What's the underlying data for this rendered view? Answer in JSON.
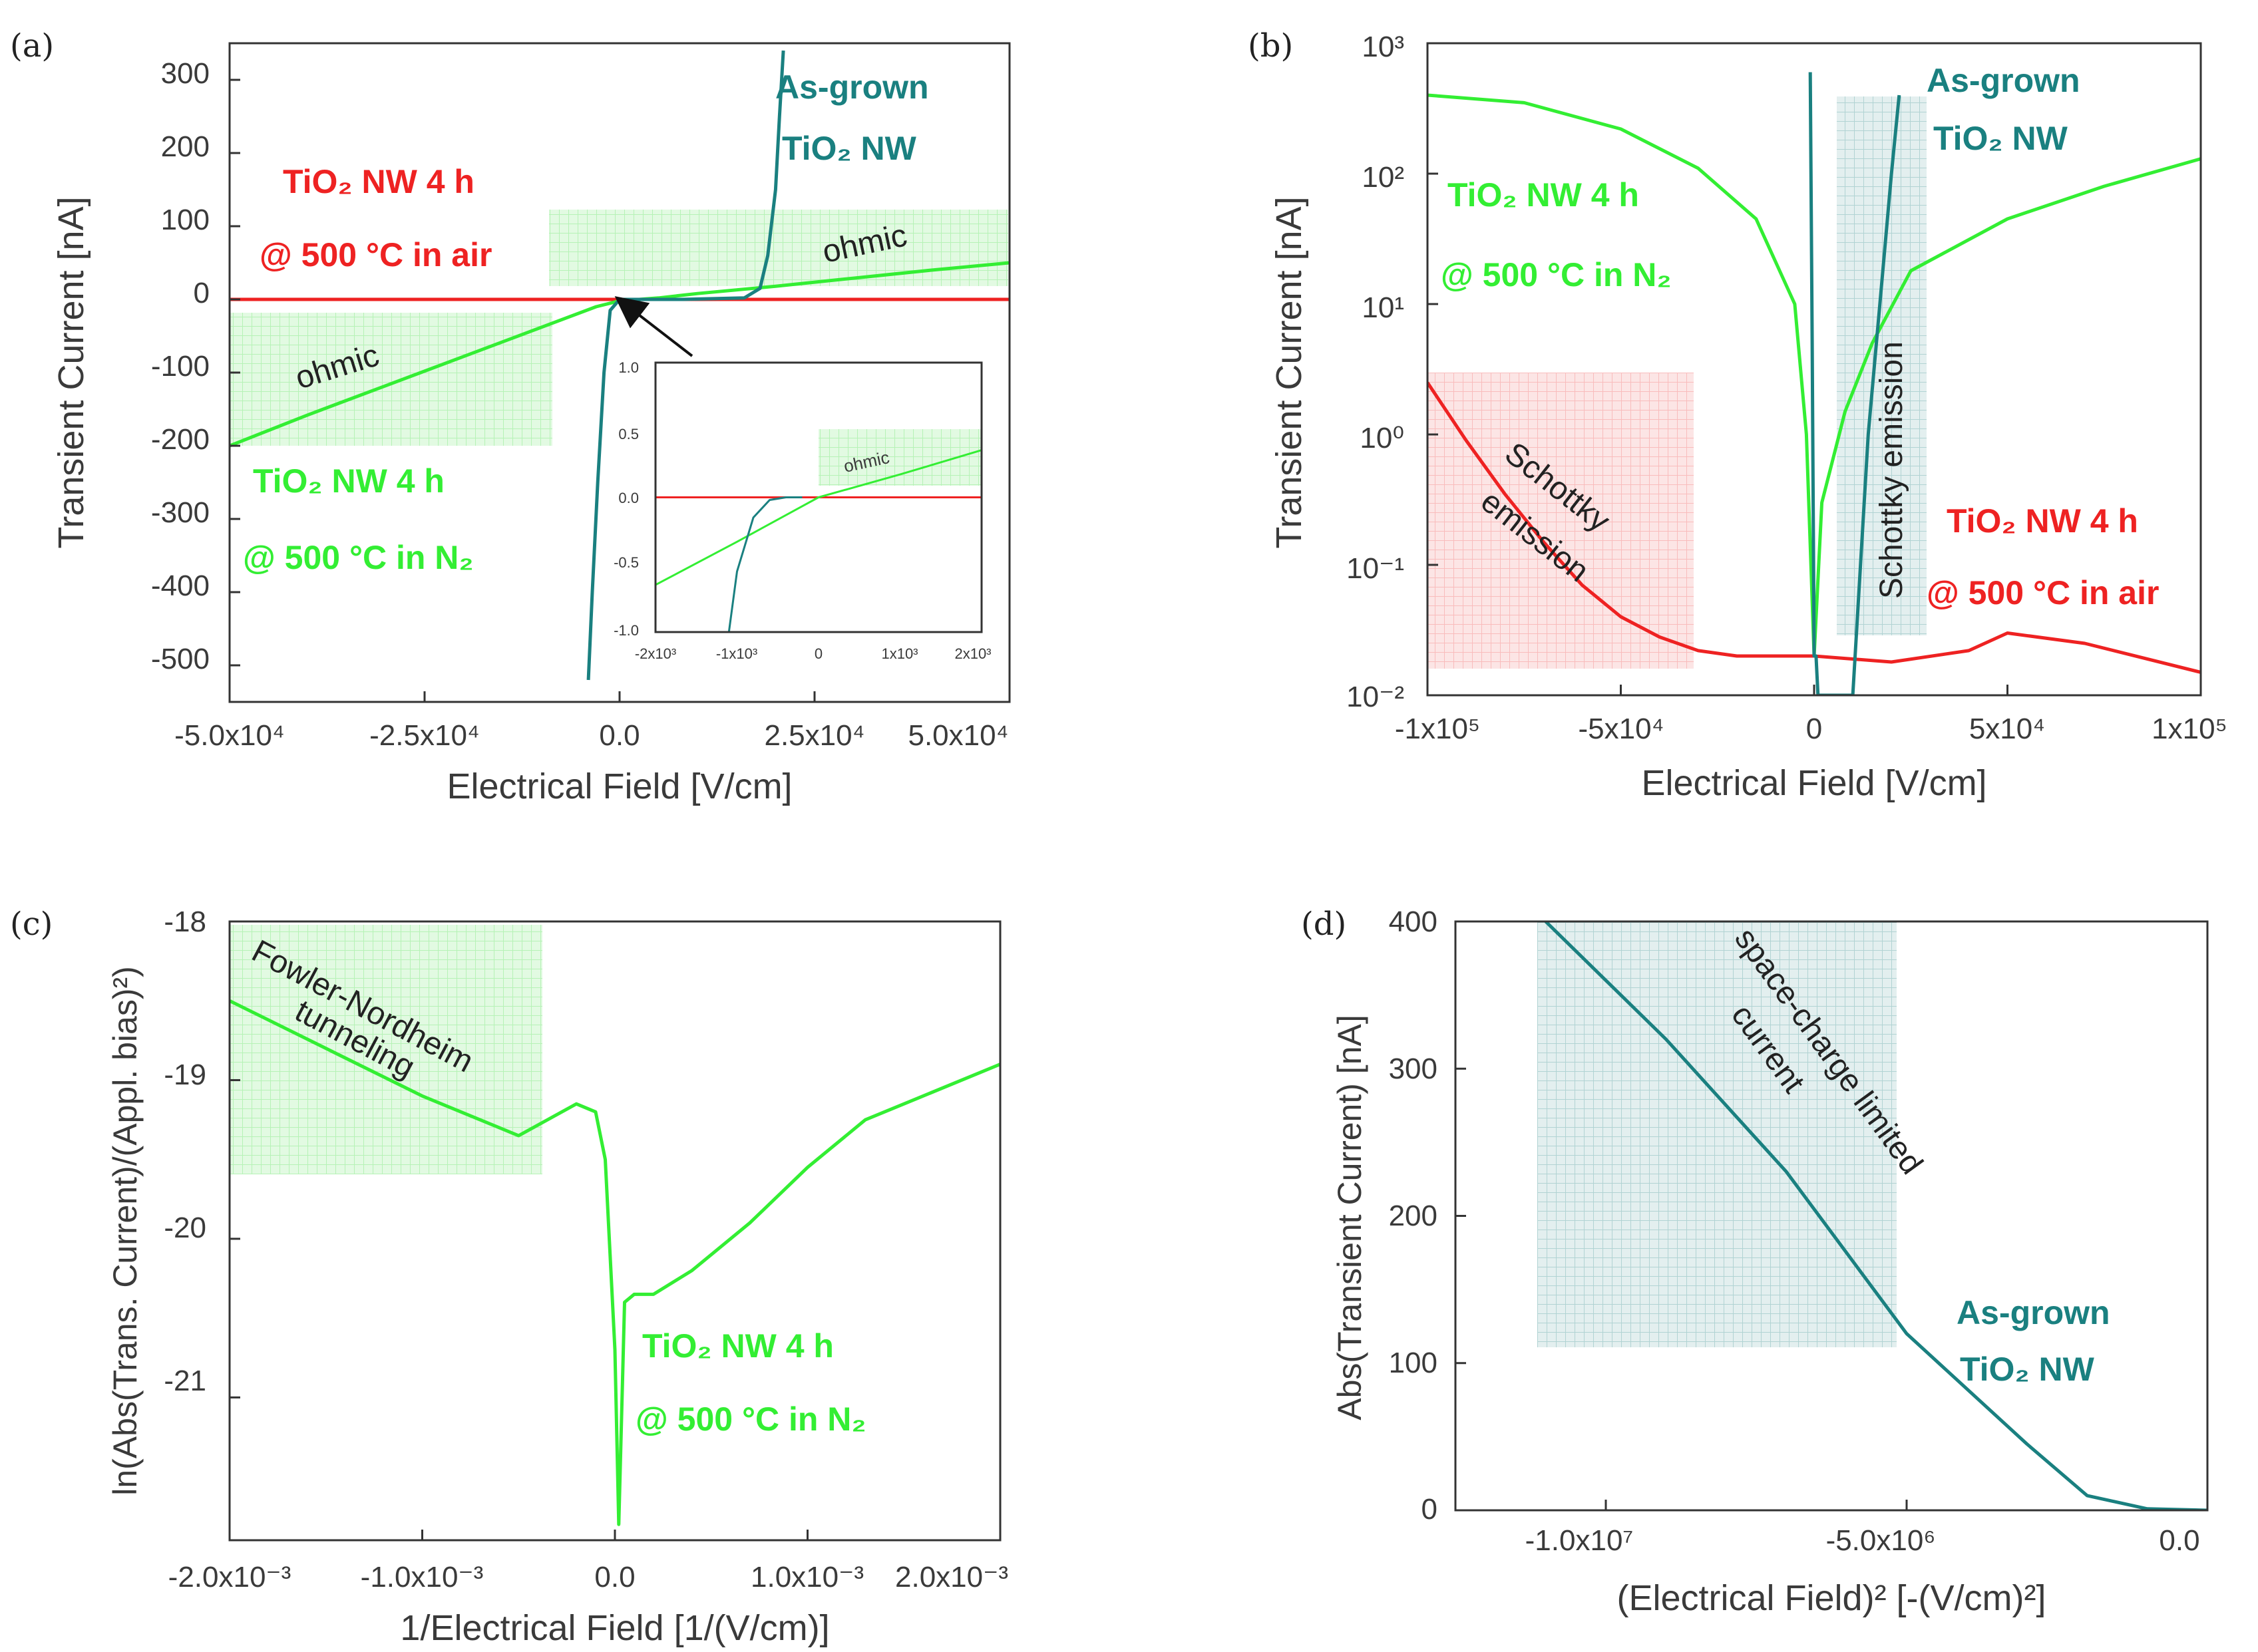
{
  "colors": {
    "green": "#33ee33",
    "teal": "#1a8080",
    "red": "#ee2222",
    "axis": "#333333",
    "green_shade": "#33dd33",
    "red_shade": "#ee4444"
  },
  "panels": {
    "a": {
      "label": "(a)",
      "xlabel": "Electrical Field [V/cm]",
      "ylabel": "Transient Current [nA]",
      "xticks": [
        "-5.0x10⁴",
        "-2.5x10⁴",
        "0.0",
        "2.5x10⁴",
        "5.0x10⁴"
      ],
      "yticks": [
        "300",
        "200",
        "100",
        "0",
        "-100",
        "-200",
        "-300",
        "-400",
        "-500"
      ],
      "ann_asgrown_1": "As-grown",
      "ann_asgrown_2": "TiO₂ NW",
      "ann_air_1": "TiO₂ NW 4 h",
      "ann_air_2": "@ 500 °C in air",
      "ann_n2_1": "TiO₂ NW 4 h",
      "ann_n2_2": "@ 500 °C in N₂",
      "ohmic_1": "ohmic",
      "ohmic_2": "ohmic",
      "inset": {
        "xticks": [
          "-2x10³",
          "-1x10³",
          "0",
          "1x10³",
          "2x10³"
        ],
        "yticks": [
          "1.0",
          "0.5",
          "0.0",
          "-0.5",
          "-1.0"
        ],
        "ohmic": "ohmic"
      }
    },
    "b": {
      "label": "(b)",
      "xlabel": "Electrical Field [V/cm]",
      "ylabel": "Transient Current [nA]",
      "xticks": [
        "-1x10⁵",
        "-5x10⁴",
        "0",
        "5x10⁴",
        "1x10⁵"
      ],
      "yticks": [
        "10³",
        "10²",
        "10¹",
        "10⁰",
        "10⁻¹",
        "10⁻²"
      ],
      "ann_asgrown_1": "As-grown",
      "ann_asgrown_2": "TiO₂ NW",
      "ann_n2_1": "TiO₂ NW 4 h",
      "ann_n2_2": "@ 500 °C in N₂",
      "ann_air_1": "TiO₂ NW 4 h",
      "ann_air_2": "@ 500 °C in air",
      "schottky_1": "Schottky",
      "schottky_2": "emission",
      "schottky_v": "Schottky emission"
    },
    "c": {
      "label": "(c)",
      "xlabel": "1/Electrical Field [1/(V/cm)]",
      "ylabel": "ln(Abs(Trans. Current)/(Appl. bias)²)",
      "xticks": [
        "-2.0x10⁻³",
        "-1.0x10⁻³",
        "0.0",
        "1.0x10⁻³",
        "2.0x10⁻³"
      ],
      "yticks": [
        "-18",
        "-19",
        "-20",
        "-21"
      ],
      "fn_1": "Fowler-Nordheim",
      "fn_2": "tunneling",
      "ann_n2_1": "TiO₂ NW 4 h",
      "ann_n2_2": "@ 500 °C in N₂"
    },
    "d": {
      "label": "(d)",
      "xlabel": "(Electrical Field)² [-(V/cm)²]",
      "ylabel": "Abs(Transient Current) [nA]",
      "xticks": [
        "-1.0x10⁷",
        "-5.0x10⁶",
        "0.0"
      ],
      "yticks": [
        "400",
        "300",
        "200",
        "100",
        "0"
      ],
      "sclc_1": "space-charge limited",
      "sclc_2": "current",
      "ann_asgrown_1": "As-grown",
      "ann_asgrown_2": "TiO₂ NW"
    }
  },
  "chart_data": [
    {
      "panel": "a",
      "type": "line",
      "title": "",
      "xlabel": "Electrical Field [V/cm]",
      "ylabel": "Transient Current [nA]",
      "xlim": [
        -50000,
        50000
      ],
      "ylim": [
        -550,
        350
      ],
      "series": [
        {
          "name": "TiO2 NW 4 h @ 500 °C in air",
          "color": "red",
          "x": [
            -50000,
            50000
          ],
          "y": [
            0,
            0
          ]
        },
        {
          "name": "TiO2 NW 4 h @ 500 °C in N2",
          "color": "green",
          "x": [
            -50000,
            -40000,
            -30000,
            -20000,
            -10000,
            -3000,
            0,
            5000,
            10000,
            20000,
            30000,
            40000,
            50000
          ],
          "y": [
            -200,
            -158,
            -118,
            -78,
            -38,
            -10,
            -2,
            2,
            8,
            18,
            29,
            40,
            50
          ]
        },
        {
          "name": "As-grown TiO2 NW",
          "color": "teal",
          "x": [
            -4000,
            -3500,
            -2800,
            -2000,
            -1200,
            0,
            8000,
            16000,
            18000,
            19000,
            20000,
            20500,
            21000
          ],
          "y": [
            -520,
            -400,
            -250,
            -100,
            -15,
            0,
            0,
            2,
            15,
            60,
            150,
            250,
            340
          ]
        }
      ]
    },
    {
      "panel": "a-inset",
      "type": "line",
      "xlim": [
        -2000,
        2000
      ],
      "ylim": [
        -1,
        1
      ],
      "series": [
        {
          "name": "air",
          "color": "red",
          "x": [
            -2000,
            2000
          ],
          "y": [
            0,
            0
          ]
        },
        {
          "name": "N2",
          "color": "green",
          "x": [
            -2000,
            -1000,
            0,
            1000,
            2000
          ],
          "y": [
            -0.65,
            -0.33,
            0,
            0.17,
            0.35
          ]
        },
        {
          "name": "as-grown",
          "color": "teal",
          "x": [
            -1100,
            -1000,
            -800,
            -600,
            -400,
            -200
          ],
          "y": [
            -1,
            -0.55,
            -0.15,
            -0.02,
            0,
            0
          ]
        }
      ]
    },
    {
      "panel": "b",
      "type": "line",
      "xlabel": "Electrical Field [V/cm]",
      "ylabel": "Transient Current [nA]",
      "yscale": "log",
      "xlim": [
        -100000,
        100000
      ],
      "ylim": [
        0.01,
        1000
      ],
      "series": [
        {
          "name": "TiO2 NW 4 h @ 500 °C in N2",
          "color": "green",
          "x": [
            -100000,
            -75000,
            -50000,
            -30000,
            -15000,
            -5000,
            -2000,
            0,
            2000,
            8000,
            15000,
            25000,
            50000,
            75000,
            100000
          ],
          "y": [
            400,
            350,
            220,
            110,
            45,
            10,
            1,
            0.02,
            0.3,
            1.5,
            5,
            18,
            45,
            80,
            130
          ]
        },
        {
          "name": "TiO2 NW 4 h @ 500 °C in air",
          "color": "red",
          "x": [
            -100000,
            -90000,
            -80000,
            -70000,
            -60000,
            -50000,
            -40000,
            -30000,
            -20000,
            0,
            20000,
            40000,
            50000,
            70000,
            100000
          ],
          "y": [
            2.5,
            0.9,
            0.35,
            0.15,
            0.07,
            0.04,
            0.028,
            0.022,
            0.02,
            0.02,
            0.018,
            0.022,
            0.03,
            0.025,
            0.015
          ]
        },
        {
          "name": "As-grown TiO2 NW",
          "color": "teal",
          "x": [
            -1000,
            -500,
            0,
            500,
            1000,
            10000,
            12000,
            14000,
            17000,
            20000,
            22000
          ],
          "y": [
            600,
            5,
            0.02,
            0.02,
            0.01,
            0.01,
            0.1,
            1,
            10,
            100,
            400
          ]
        }
      ]
    },
    {
      "panel": "c",
      "type": "line",
      "xlabel": "1/Electrical Field [1/(V/cm)]",
      "ylabel": "ln(Abs(Trans. Current)/(Appl. bias)²)",
      "xlim": [
        -0.002,
        0.002
      ],
      "ylim": [
        -21.9,
        -18
      ],
      "series": [
        {
          "name": "TiO2 NW 4 h @ 500 °C in N2",
          "color": "green",
          "x": [
            -0.002,
            -0.0015,
            -0.001,
            -0.0005,
            -0.0002,
            -0.0001,
            -5e-05,
            0,
            2e-05,
            5e-05,
            0.0001,
            0.0002,
            0.0004,
            0.0007,
            0.001,
            0.0013,
            0.0015,
            0.002
          ],
          "y": [
            -18.5,
            -18.8,
            -19.1,
            -19.35,
            -19.15,
            -19.2,
            -19.5,
            -20.7,
            -21.8,
            -20.4,
            -20.35,
            -20.35,
            -20.2,
            -19.9,
            -19.55,
            -19.25,
            -19.15,
            -18.9
          ]
        }
      ]
    },
    {
      "panel": "d",
      "type": "line",
      "xlabel": "(Electrical Field)² [-(V/cm)²]",
      "ylabel": "Abs(Transient Current) [nA]",
      "xlim": [
        -12500000,
        0
      ],
      "ylim": [
        0,
        400
      ],
      "series": [
        {
          "name": "As-grown TiO2 NW",
          "color": "teal",
          "x": [
            -11000000,
            -9000000,
            -7000000,
            -5000000,
            -3000000,
            -2000000,
            -1000000,
            0
          ],
          "y": [
            400,
            320,
            230,
            120,
            45,
            10,
            1,
            0
          ]
        }
      ]
    }
  ]
}
